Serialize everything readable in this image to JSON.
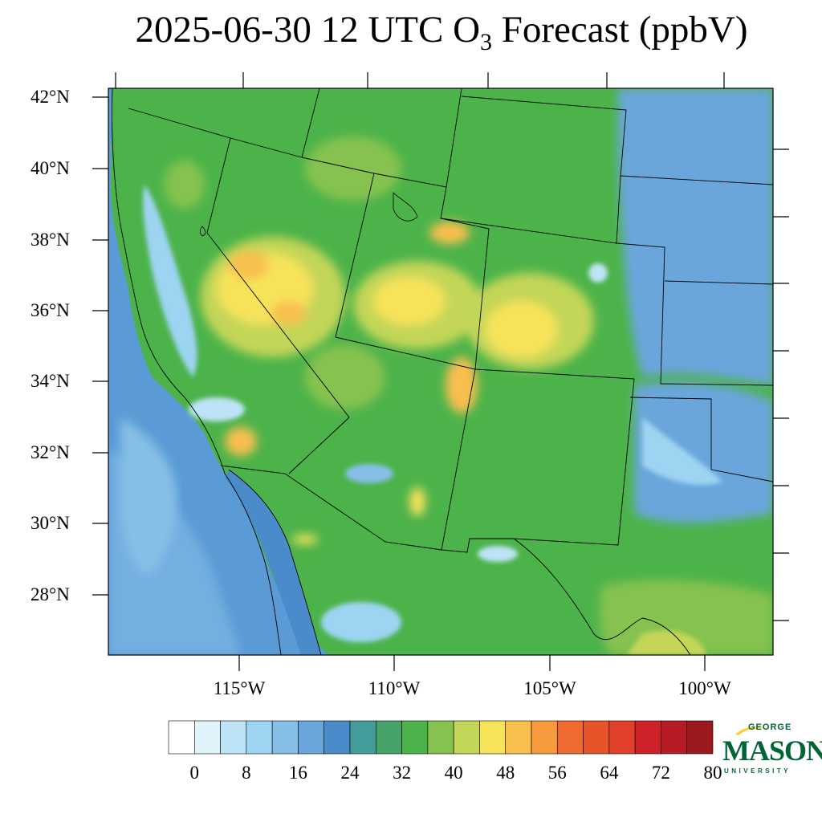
{
  "title": {
    "prefix": "2025-06-30 12 UTC O",
    "subscript": "3",
    "suffix": " Forecast (ppbV)"
  },
  "map": {
    "lat_labels": [
      "42°N",
      "40°N",
      "38°N",
      "36°N",
      "34°N",
      "32°N",
      "30°N",
      "28°N"
    ],
    "lon_labels": [
      "115°W",
      "110°W",
      "105°W",
      "100°W"
    ],
    "lat_range": [
      26.3,
      42.4
    ],
    "lon_range": [
      -119.3,
      -97.8
    ]
  },
  "colorbar": {
    "colors": [
      "#ffffff",
      "#e0f3fb",
      "#bde3f6",
      "#9dd4f2",
      "#86bfe6",
      "#6aa6dc",
      "#4a8cc9",
      "#449c9a",
      "#45a36a",
      "#4cb34a",
      "#86c24f",
      "#c3d659",
      "#f7e35a",
      "#f8bf4f",
      "#f69a3d",
      "#ef6a2e",
      "#e8542a",
      "#e1402a",
      "#cf2128",
      "#b71c24",
      "#9b1a1e"
    ],
    "labels": [
      "0",
      "8",
      "16",
      "24",
      "32",
      "40",
      "48",
      "56",
      "64",
      "72",
      "80"
    ]
  },
  "logo": {
    "top": "GEORGE",
    "main": "MASON",
    "bottom": "UNIVERSITY"
  }
}
